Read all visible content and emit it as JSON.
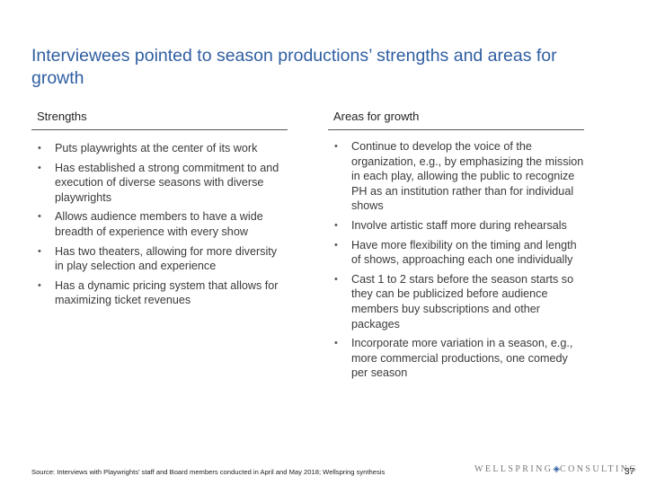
{
  "title": "Interviewees pointed to season productions’ strengths and areas for growth",
  "strengths": {
    "heading": "Strengths",
    "bullet": "•",
    "items": [
      "Puts playwrights at the center of its work",
      "Has established a strong commitment to and execution of diverse seasons with diverse playwrights",
      "Allows audience members to have a wide breadth of experience with every show",
      "Has two theaters, allowing for more diversity in play selection and experience",
      "Has a dynamic pricing system that allows for maximizing ticket revenues"
    ]
  },
  "growth": {
    "heading": "Areas for growth",
    "bullet": "•",
    "items": [
      "Continue to develop the voice of the organization, e.g., by emphasizing the mission in each play, allowing the public to recognize PH as an institution rather than for individual shows",
      "Involve artistic staff more during rehearsals",
      "Have more flexibility on the timing and length of shows, approaching each one individually",
      "Cast 1 to 2 stars before the season starts so they can be publicized before audience members buy subscriptions and other packages",
      "Incorporate more variation in a season, e.g., more commercial productions, one comedy per season"
    ]
  },
  "footer": {
    "source": "Source: Interviews with Playwrights’ staff and Board members conducted in April and May 2018; Wellspring synthesis",
    "logo_left": "WELLSPRING",
    "logo_mark": "◈",
    "logo_right": "CONSULTING",
    "page_number": "37"
  }
}
